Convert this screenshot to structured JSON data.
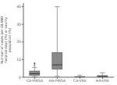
{
  "chart_data": {
    "type": "box",
    "categories": [
      "CA-MRSA",
      "HA-MRSA",
      "CA-VRE",
      "HA-VRE"
    ],
    "boxes": [
      {
        "q1": 1.0,
        "median": 2.0,
        "q3": 3.5,
        "whislo": 0.3,
        "whishi": 5.5,
        "fliers": [
          6.5,
          7.5,
          8.0
        ]
      },
      {
        "q1": 4.5,
        "median": 7.0,
        "q3": 14.0,
        "whislo": 0.5,
        "whishi": 40.0,
        "fliers": []
      },
      {
        "q1": 0.05,
        "median": 0.15,
        "q3": 0.35,
        "whislo": 0.02,
        "whishi": 1.2,
        "fliers": []
      },
      {
        "q1": 0.1,
        "median": 0.4,
        "q3": 0.9,
        "whislo": 0.02,
        "whishi": 2.5,
        "fliers": []
      }
    ],
    "ylabel": "Number of cases per 10,000\nhospital days (%) or county\npopulation (%)",
    "ylim": [
      0,
      42
    ],
    "yticks": [
      0,
      10,
      20,
      30,
      40
    ],
    "color": "#888888",
    "grid": false
  }
}
